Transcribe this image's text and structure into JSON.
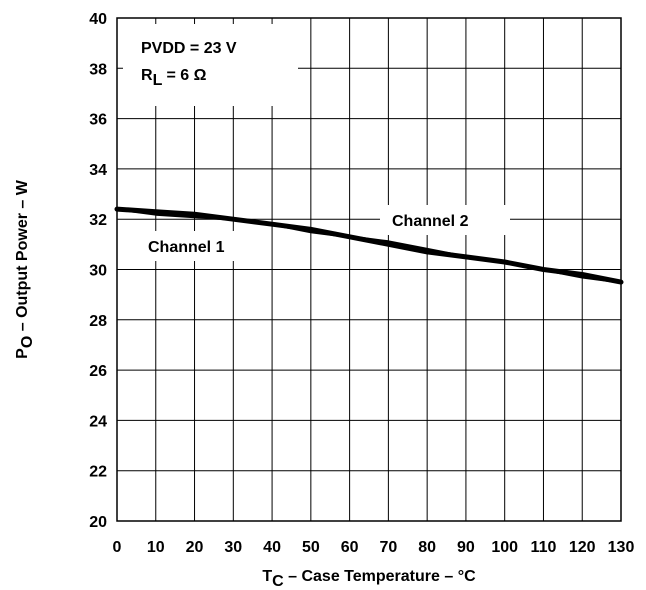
{
  "chart_data": {
    "type": "line",
    "xlabel": {
      "main": "T",
      "sub": "C",
      "rest": " – Case Temperature – °C"
    },
    "ylabel": {
      "main": "P",
      "sub": "O",
      "rest": " – Output Power – W"
    },
    "xlim": [
      0,
      130
    ],
    "ylim": [
      20,
      40
    ],
    "x_ticks": [
      "0",
      "10",
      "20",
      "30",
      "40",
      "50",
      "60",
      "70",
      "80",
      "90",
      "100",
      "110",
      "120",
      "130"
    ],
    "y_ticks": [
      "20",
      "22",
      "24",
      "26",
      "28",
      "30",
      "32",
      "34",
      "36",
      "38",
      "40"
    ],
    "grid": true,
    "conditions": {
      "line1": "PVDD = 23 V",
      "line2": {
        "main": "R",
        "sub": "L",
        "rest": " = 6 Ω"
      }
    },
    "series": [
      {
        "name": "Channel 1",
        "x": [
          0,
          10,
          20,
          30,
          40,
          50,
          60,
          70,
          80,
          90,
          100,
          110,
          120,
          130
        ],
        "y": [
          32.4,
          32.3,
          32.2,
          32.0,
          31.8,
          31.6,
          31.3,
          31.0,
          30.7,
          30.5,
          30.3,
          30.0,
          29.8,
          29.5
        ]
      },
      {
        "name": "Channel 2",
        "x": [
          0,
          10,
          20,
          30,
          40,
          50,
          60,
          70,
          80,
          90,
          100,
          110,
          120,
          130
        ],
        "y": [
          32.4,
          32.2,
          32.1,
          32.0,
          31.8,
          31.5,
          31.3,
          31.1,
          30.8,
          30.5,
          30.3,
          30.0,
          29.7,
          29.5
        ]
      }
    ]
  }
}
